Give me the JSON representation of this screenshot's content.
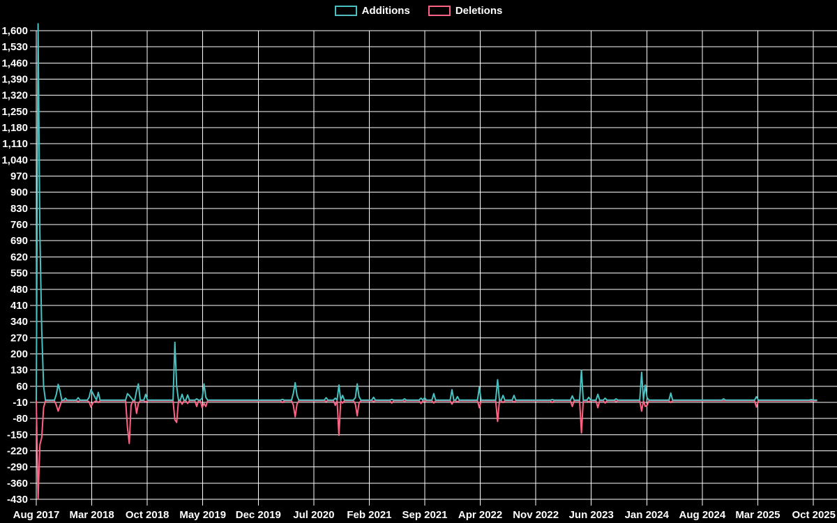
{
  "legend": {
    "position": "top-center",
    "items": [
      {
        "label": "Additions",
        "color": "#4bc0c0"
      },
      {
        "label": "Deletions",
        "color": "#ff6384"
      }
    ]
  },
  "chart_data": {
    "type": "line",
    "title": "",
    "xlabel": "",
    "ylabel": "",
    "background": "#000000",
    "grid": true,
    "grid_color": "#ffffff",
    "text_color": "#ffffff",
    "y_min": -430,
    "y_max": 1600,
    "y_step": 70,
    "y_tick_labels": [
      "1,600",
      "1,530",
      "1,460",
      "1,390",
      "1,320",
      "1,250",
      "1,180",
      "1,110",
      "1,040",
      "970",
      "900",
      "830",
      "760",
      "690",
      "620",
      "550",
      "480",
      "410",
      "340",
      "270",
      "200",
      "130",
      "60",
      "-10",
      "-80",
      "-150",
      "-220",
      "-290",
      "-360",
      "-430"
    ],
    "x_tick_labels": [
      "Aug 2017",
      "Mar 2018",
      "Oct 2018",
      "May 2019",
      "Dec 2019",
      "Jul 2020",
      "Feb 2021",
      "Sep 2021",
      "Apr 2022",
      "Nov 2022",
      "Jun 2023",
      "Jan 2024",
      "Aug 2024",
      "Mar 2025",
      "Oct 2025"
    ],
    "x_unit": "weeks",
    "weeks_total": 429,
    "weeks_per_x_interval": 30.44,
    "series": [
      {
        "name": "Additions",
        "color": "#4bc0c0",
        "key": "a"
      },
      {
        "name": "Deletions",
        "color": "#ff6384",
        "key": "d"
      }
    ],
    "baseline_value": 0,
    "points_nonzero_week_additions_deletions": [
      [
        1,
        1630,
        -425
      ],
      [
        2,
        720,
        -190
      ],
      [
        3,
        305,
        -160
      ],
      [
        4,
        60,
        -30
      ],
      [
        11,
        25,
        -20
      ],
      [
        12,
        68,
        -45
      ],
      [
        13,
        40,
        -22
      ],
      [
        16,
        8,
        0
      ],
      [
        23,
        10,
        -3
      ],
      [
        29,
        12,
        -5
      ],
      [
        30,
        45,
        -28
      ],
      [
        31,
        30,
        -10
      ],
      [
        32,
        15,
        -4
      ],
      [
        34,
        33,
        -8
      ],
      [
        50,
        28,
        -115
      ],
      [
        51,
        20,
        -185
      ],
      [
        52,
        10,
        -20
      ],
      [
        55,
        40,
        -55
      ],
      [
        56,
        70,
        -12
      ],
      [
        60,
        25,
        -5
      ],
      [
        76,
        250,
        -83
      ],
      [
        77,
        60,
        -94
      ],
      [
        80,
        25,
        -15
      ],
      [
        83,
        22,
        -12
      ],
      [
        88,
        5,
        -25
      ],
      [
        91,
        8,
        -30
      ],
      [
        92,
        70,
        -12
      ],
      [
        93,
        12,
        -25
      ],
      [
        135,
        3,
        -8
      ],
      [
        141,
        30,
        -20
      ],
      [
        142,
        75,
        -70
      ],
      [
        143,
        20,
        -15
      ],
      [
        159,
        10,
        -3
      ],
      [
        164,
        8,
        -20
      ],
      [
        166,
        65,
        -150
      ],
      [
        168,
        20,
        -10
      ],
      [
        175,
        10,
        -15
      ],
      [
        176,
        70,
        -65
      ],
      [
        177,
        15,
        -10
      ],
      [
        185,
        12,
        -3
      ],
      [
        195,
        3,
        -10
      ],
      [
        202,
        5,
        -2
      ],
      [
        211,
        8,
        -12
      ],
      [
        213,
        10,
        -3
      ],
      [
        218,
        28,
        -10
      ],
      [
        228,
        45,
        -15
      ],
      [
        231,
        15,
        -5
      ],
      [
        243,
        55,
        -30
      ],
      [
        253,
        88,
        -90
      ],
      [
        256,
        20,
        -8
      ],
      [
        262,
        20,
        -5
      ],
      [
        283,
        2,
        -8
      ],
      [
        294,
        18,
        -25
      ],
      [
        299,
        130,
        -140
      ],
      [
        303,
        12,
        -5
      ],
      [
        308,
        25,
        -30
      ],
      [
        312,
        8,
        -10
      ],
      [
        318,
        5,
        -3
      ],
      [
        332,
        120,
        -45
      ],
      [
        334,
        65,
        -25
      ],
      [
        335,
        10,
        -20
      ],
      [
        348,
        30,
        -8
      ],
      [
        377,
        5,
        0
      ],
      [
        395,
        15,
        -28
      ],
      [
        425,
        2,
        -2
      ]
    ]
  }
}
